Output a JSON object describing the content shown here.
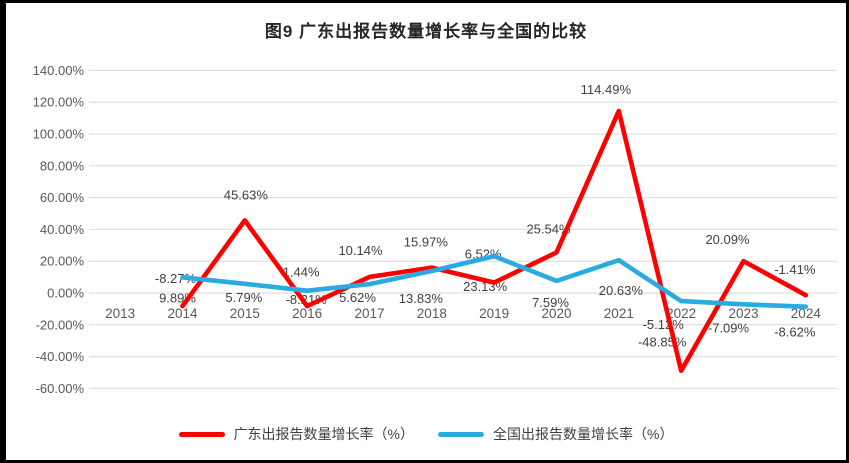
{
  "title": "图9  广东出报告数量增长率与全国的比较",
  "legend": [
    {
      "label": "广东出报告数量增长率（%）",
      "color": "#FF0000"
    },
    {
      "label": "全国出报告数量增长率（%）",
      "color": "#29ABE2"
    }
  ],
  "colors": {
    "guangdong_line": "#FF0000",
    "national_line": "#29ABE2",
    "gridline": "#D9D9D9",
    "axis_text": "#595959",
    "data_label_text": "#3F3F3F"
  },
  "chart_data": {
    "type": "line",
    "title": "图9  广东出报告数量增长率与全国的比较",
    "categories": [
      "2013",
      "2014",
      "2015",
      "2016",
      "2017",
      "2018",
      "2019",
      "2020",
      "2021",
      "2022",
      "2023",
      "2024"
    ],
    "y_axis": {
      "min": -60,
      "max": 140,
      "step": 20,
      "unit": "%",
      "tick_labels": [
        "140.00%",
        "120.00%",
        "100.00%",
        "80.00%",
        "60.00%",
        "40.00%",
        "20.00%",
        "0.00%",
        "-20.00%",
        "-40.00%",
        "-60.00%"
      ]
    },
    "grid": true,
    "legend_position": "bottom",
    "series": [
      {
        "name": "广东出报告数量增长率（%）",
        "color": "#FF0000",
        "values": [
          null,
          -8.27,
          45.63,
          -8.21,
          10.14,
          15.97,
          6.52,
          25.54,
          114.49,
          -48.85,
          20.09,
          -1.41
        ],
        "labels": [
          "",
          "-8.27%",
          "45.63%",
          "-8.21%",
          "10.14%",
          "15.97%",
          "6.52%",
          "25.54%",
          "114.49%",
          "-48.85%",
          "20.09%",
          "-1.41%"
        ],
        "label_offsets": [
          [
            0,
            0
          ],
          [
            -7,
            -23
          ],
          [
            1,
            -21
          ],
          [
            -1,
            -2
          ],
          [
            -9,
            -22
          ],
          [
            -6,
            -21
          ],
          [
            -11,
            -24
          ],
          [
            -8,
            -19
          ],
          [
            -13,
            -17
          ],
          [
            -19,
            -24
          ],
          [
            -16,
            -17
          ],
          [
            -11,
            -21
          ]
        ]
      },
      {
        "name": "全国出报告数量增长率（%）",
        "color": "#29ABE2",
        "values": [
          null,
          9.89,
          5.79,
          1.44,
          5.62,
          13.83,
          23.13,
          7.59,
          20.63,
          -5.12,
          -7.09,
          -8.62
        ],
        "labels": [
          "",
          "9.89%",
          "5.79%",
          "1.44%",
          "5.62%",
          "13.83%",
          "23.13%",
          "7.59%",
          "20.63%",
          "-5.12%",
          "-7.09%",
          "-8.62%"
        ],
        "label_offsets": [
          [
            0,
            0
          ],
          [
            -5,
            25
          ],
          [
            -1,
            18
          ],
          [
            -6,
            -14
          ],
          [
            -12,
            18
          ],
          [
            -11,
            32
          ],
          [
            -9,
            35
          ],
          [
            -6,
            26
          ],
          [
            2,
            35
          ],
          [
            -18,
            28
          ],
          [
            -15,
            28
          ],
          [
            -11,
            30
          ]
        ]
      }
    ]
  }
}
